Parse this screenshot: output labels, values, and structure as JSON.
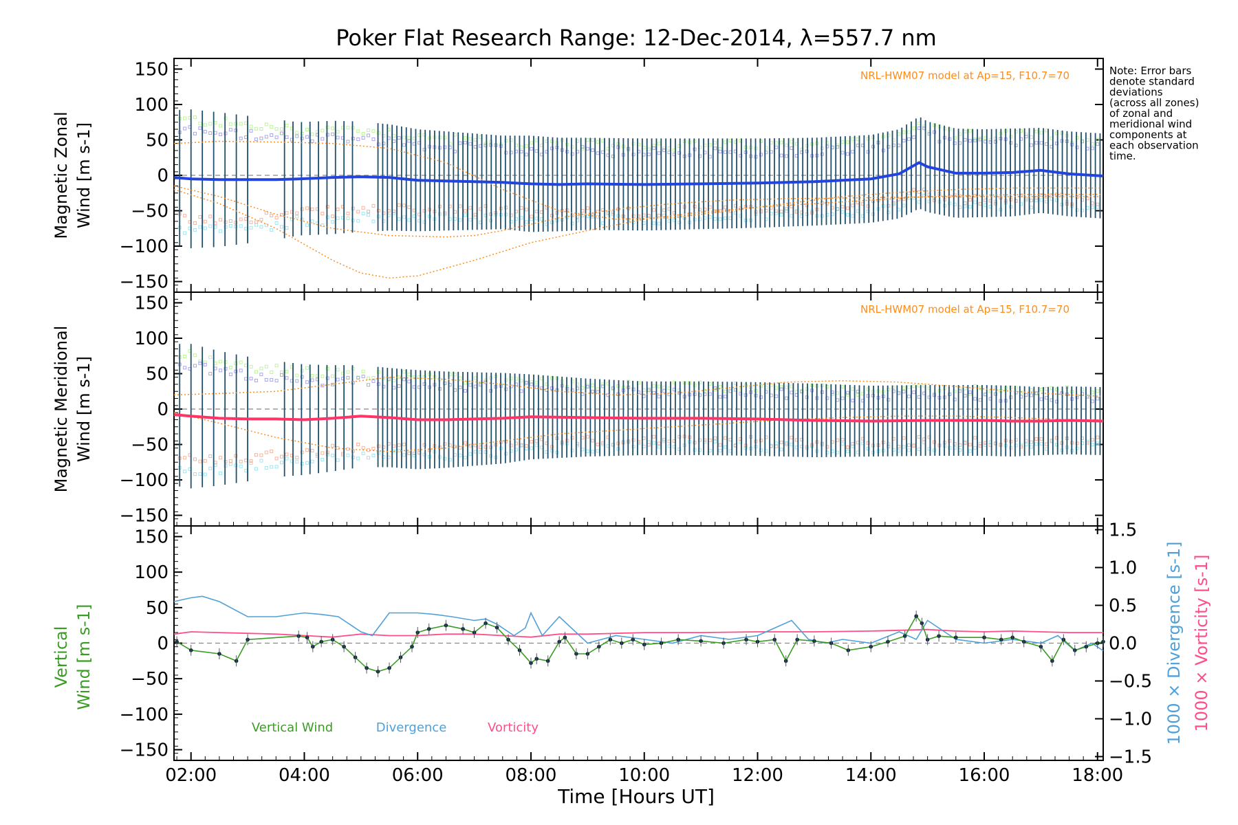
{
  "title": "Poker Flat Research Range: 12-Dec-2014, λ=557.7 nm",
  "xlabel": "Time [Hours UT]",
  "note": [
    "Note: Error bars",
    "denote standard",
    "deviations",
    "(across all zones)",
    "of zonal and",
    "meridional wind",
    "components at",
    "each observation",
    "time."
  ],
  "model_label": "NRL-HWM07 model at Ap=15, F10.7=70",
  "colors": {
    "zonal": "#2244dd",
    "meridional": "#ff3366",
    "vertical": "#3a9d23",
    "divergence": "#4fa0d8",
    "vorticity": "#ff4d88",
    "model": "#ff8c1a",
    "errorbar": "#1f4f6a",
    "zone_green": "#bdf59a",
    "zone_lilac": "#a9a7e6",
    "zone_cyan": "#9fe6ef",
    "zone_salmon": "#f4b49c"
  },
  "chart_data": [
    {
      "type": "line",
      "panel": "zonal",
      "ylabel_lines": [
        "Magnetic Zonal",
        "Wind [m s-1]"
      ],
      "xlim": [
        1.7,
        18.1
      ],
      "ylim": [
        -165,
        165
      ],
      "x_ticks": [
        "02:00",
        "04:00",
        "06:00",
        "08:00",
        "10:00",
        "12:00",
        "14:00",
        "16:00",
        "18:00"
      ],
      "y_ticks": [
        -150,
        -100,
        -50,
        0,
        50,
        100,
        150
      ],
      "series": [
        {
          "kind": "mean_wind",
          "x": [
            1.7,
            2.0,
            2.5,
            3.0,
            3.5,
            3.9,
            4.5,
            5.0,
            5.5,
            6.0,
            6.5,
            7.0,
            7.5,
            8.0,
            8.5,
            9.0,
            10.0,
            11.0,
            12.0,
            13.0,
            14.0,
            14.5,
            14.85,
            15.0,
            15.5,
            16.0,
            16.5,
            17.0,
            17.5,
            18.1
          ],
          "y": [
            -3,
            -5,
            -6,
            -6,
            -6,
            -5,
            -3,
            -2,
            -3,
            -7,
            -8,
            -9,
            -10,
            -12,
            -13,
            -12,
            -13,
            -12,
            -11,
            -9,
            -5,
            2,
            18,
            12,
            3,
            3,
            4,
            7,
            2,
            -1
          ],
          "err": [
            95,
            98,
            95,
            90,
            85,
            80,
            80,
            78,
            75,
            72,
            70,
            68,
            66,
            68,
            66,
            65,
            65,
            64,
            63,
            62,
            62,
            63,
            65,
            64,
            63,
            62,
            62,
            60,
            60,
            60
          ]
        },
        {
          "kind": "model",
          "x": [
            1.7,
            2.5,
            3.5,
            4.5,
            5.5,
            6.5,
            7.5,
            8.5,
            9.5,
            10.5,
            11.5,
            12.5,
            13.5,
            14.5,
            15.5,
            16.5,
            17.5,
            18.1
          ],
          "y": [
            45,
            48,
            47,
            45,
            38,
            18,
            -20,
            -50,
            -62,
            -60,
            -50,
            -40,
            -30,
            -24,
            -20,
            -18,
            -18,
            -18
          ]
        },
        {
          "kind": "model",
          "x": [
            1.7,
            2.5,
            3.5,
            4.5,
            5.0,
            5.5,
            6.0,
            7.0,
            8.0,
            9.0,
            10.0,
            11.0,
            12.0,
            13.0,
            14.0,
            15.0,
            16.0,
            17.0,
            18.1
          ],
          "y": [
            -20,
            -40,
            -75,
            -120,
            -138,
            -145,
            -142,
            -120,
            -95,
            -78,
            -62,
            -52,
            -45,
            -40,
            -35,
            -30,
            -28,
            -27,
            -27
          ]
        },
        {
          "kind": "model",
          "x": [
            1.7,
            2.5,
            3.5,
            4.5,
            5.5,
            6.5,
            7.0,
            7.5,
            8.5,
            9.5,
            10.5,
            11.5,
            12.5,
            13.5,
            14.5,
            15.5,
            16.5,
            17.5,
            18.1
          ],
          "y": [
            -15,
            -30,
            -55,
            -75,
            -85,
            -87,
            -85,
            -78,
            -60,
            -48,
            -40,
            -35,
            -33,
            -32,
            -31,
            -30,
            -30,
            -30,
            -30
          ]
        }
      ]
    },
    {
      "type": "line",
      "panel": "meridional",
      "ylabel_lines": [
        "Magnetic Meridional",
        "Wind [m s-1]"
      ],
      "xlim": [
        1.7,
        18.1
      ],
      "ylim": [
        -165,
        165
      ],
      "y_ticks": [
        -150,
        -100,
        -50,
        0,
        50,
        100,
        150
      ],
      "series": [
        {
          "kind": "mean_wind",
          "x": [
            1.7,
            2.0,
            2.5,
            3.0,
            3.5,
            4.0,
            4.5,
            5.0,
            5.5,
            6.0,
            6.5,
            7.0,
            7.5,
            8.0,
            9.0,
            10.0,
            11.0,
            12.0,
            13.0,
            14.0,
            15.0,
            16.0,
            16.5,
            17.0,
            17.5,
            18.1
          ],
          "y": [
            -8,
            -10,
            -13,
            -14,
            -14,
            -15,
            -13,
            -10,
            -12,
            -15,
            -15,
            -14,
            -13,
            -11,
            -12,
            -13,
            -13,
            -14,
            -16,
            -17,
            -16,
            -16,
            -17,
            -17,
            -16,
            -17
          ],
          "err": [
            100,
            102,
            95,
            88,
            82,
            78,
            75,
            72,
            70,
            70,
            68,
            66,
            64,
            60,
            55,
            52,
            52,
            52,
            52,
            50,
            50,
            50,
            50,
            48,
            48,
            48
          ]
        },
        {
          "kind": "model",
          "x": [
            1.7,
            2.5,
            3.5,
            4.5,
            5.5,
            6.5,
            7.5,
            8.5,
            9.5,
            10.5,
            11.5,
            12.5,
            13.5,
            14.5,
            15.5,
            16.5,
            17.5,
            18.1
          ],
          "y": [
            20,
            22,
            25,
            35,
            45,
            42,
            35,
            25,
            20,
            22,
            30,
            38,
            40,
            38,
            32,
            25,
            20,
            18
          ]
        },
        {
          "kind": "model",
          "x": [
            1.7,
            2.5,
            3.5,
            4.5,
            5.5,
            6.5,
            7.5,
            8.5,
            9.5,
            10.5,
            11.5,
            12.5,
            13.5,
            14.5,
            15.5,
            16.5,
            17.5,
            18.1
          ],
          "y": [
            -5,
            -20,
            -40,
            -55,
            -60,
            -55,
            -45,
            -35,
            -30,
            -25,
            -20,
            -15,
            -12,
            -10,
            -10,
            -12,
            -15,
            -15
          ]
        }
      ]
    },
    {
      "type": "line",
      "panel": "vertical",
      "ylabel_lines": [
        "Vertical",
        "Wind [m s-1]"
      ],
      "ylabel_right": [
        "1000 × Divergence [s-1]",
        "1000 × Vorticity [s-1]"
      ],
      "xlim": [
        1.7,
        18.1
      ],
      "ylim": [
        -165,
        165
      ],
      "y2lim": [
        -1.55,
        1.55
      ],
      "y_ticks": [
        -150,
        -100,
        -50,
        0,
        50,
        100,
        150
      ],
      "y2_ticks": [
        "1.5",
        "1.0",
        "0.5",
        "0.0",
        "−0.5",
        "−1.0",
        "−1.5"
      ],
      "legend": [
        "Vertical Wind",
        "Divergence",
        "Vorticity"
      ],
      "series": [
        {
          "name": "Vertical Wind",
          "x": [
            1.75,
            2.0,
            2.5,
            2.8,
            3.0,
            3.9,
            4.05,
            4.15,
            4.3,
            4.5,
            4.7,
            4.9,
            5.1,
            5.3,
            5.5,
            5.7,
            5.9,
            6.0,
            6.2,
            6.5,
            6.8,
            7.0,
            7.2,
            7.4,
            7.6,
            7.8,
            8.0,
            8.1,
            8.3,
            8.5,
            8.6,
            8.8,
            9.0,
            9.2,
            9.4,
            9.6,
            9.8,
            10.0,
            10.3,
            10.6,
            11.0,
            11.4,
            11.8,
            12.0,
            12.3,
            12.5,
            12.7,
            13.0,
            13.3,
            13.6,
            14.0,
            14.3,
            14.6,
            14.8,
            14.9,
            15.0,
            15.2,
            15.5,
            16.0,
            16.3,
            16.5,
            16.7,
            17.0,
            17.2,
            17.4,
            17.6,
            17.8,
            18.0,
            18.1
          ],
          "y": [
            2,
            -10,
            -15,
            -25,
            5,
            10,
            8,
            -5,
            2,
            5,
            -5,
            -20,
            -35,
            -40,
            -35,
            -20,
            -5,
            15,
            20,
            25,
            20,
            15,
            28,
            22,
            5,
            -10,
            -28,
            -22,
            -25,
            2,
            8,
            -15,
            -15,
            -5,
            5,
            0,
            5,
            -2,
            0,
            5,
            3,
            0,
            5,
            2,
            5,
            -25,
            5,
            3,
            0,
            -10,
            -5,
            2,
            10,
            38,
            28,
            5,
            10,
            8,
            8,
            5,
            8,
            2,
            -5,
            -25,
            5,
            -10,
            -5,
            0,
            2
          ]
        },
        {
          "name": "Divergence",
          "x": [
            1.7,
            2.0,
            2.2,
            2.5,
            3.0,
            3.5,
            4.0,
            4.3,
            4.6,
            5.0,
            5.2,
            5.5,
            6.0,
            6.3,
            6.6,
            7.0,
            7.2,
            7.4,
            7.7,
            7.9,
            8.0,
            8.2,
            8.5,
            9.0,
            9.5,
            10.0,
            10.5,
            11.0,
            11.5,
            12.0,
            12.3,
            12.6,
            12.9,
            13.2,
            13.5,
            14.0,
            14.5,
            14.8,
            15.0,
            15.5,
            16.0,
            16.5,
            17.0,
            17.3,
            17.6,
            17.9,
            18.1
          ],
          "y": [
            0.55,
            0.6,
            0.62,
            0.55,
            0.35,
            0.35,
            0.4,
            0.38,
            0.35,
            0.15,
            0.1,
            0.4,
            0.4,
            0.38,
            0.35,
            0.3,
            0.32,
            0.25,
            0.1,
            0.2,
            0.4,
            0.1,
            0.35,
            0.0,
            0.1,
            0.05,
            0.0,
            0.1,
            0.05,
            0.1,
            0.2,
            0.3,
            0.05,
            0.0,
            0.05,
            0.0,
            0.15,
            0.05,
            0.3,
            0.05,
            0.0,
            0.05,
            0.0,
            0.1,
            -0.1,
            0.0,
            -0.1
          ]
        },
        {
          "name": "Vorticity",
          "x": [
            1.7,
            2.0,
            2.5,
            3.0,
            3.5,
            4.0,
            4.5,
            5.0,
            5.5,
            6.0,
            6.5,
            7.0,
            7.5,
            8.0,
            8.5,
            9.0,
            9.5,
            10.0,
            11.0,
            12.0,
            13.0,
            14.0,
            14.5,
            15.0,
            15.5,
            16.0,
            16.5,
            17.0,
            17.5,
            18.1
          ],
          "y": [
            0.12,
            0.15,
            0.14,
            0.13,
            0.12,
            0.1,
            0.08,
            0.12,
            0.1,
            0.1,
            0.12,
            0.12,
            0.1,
            0.08,
            0.12,
            0.12,
            0.13,
            0.14,
            0.14,
            0.15,
            0.15,
            0.16,
            0.17,
            0.18,
            0.16,
            0.15,
            0.16,
            0.15,
            0.14,
            0.14
          ]
        }
      ]
    }
  ]
}
